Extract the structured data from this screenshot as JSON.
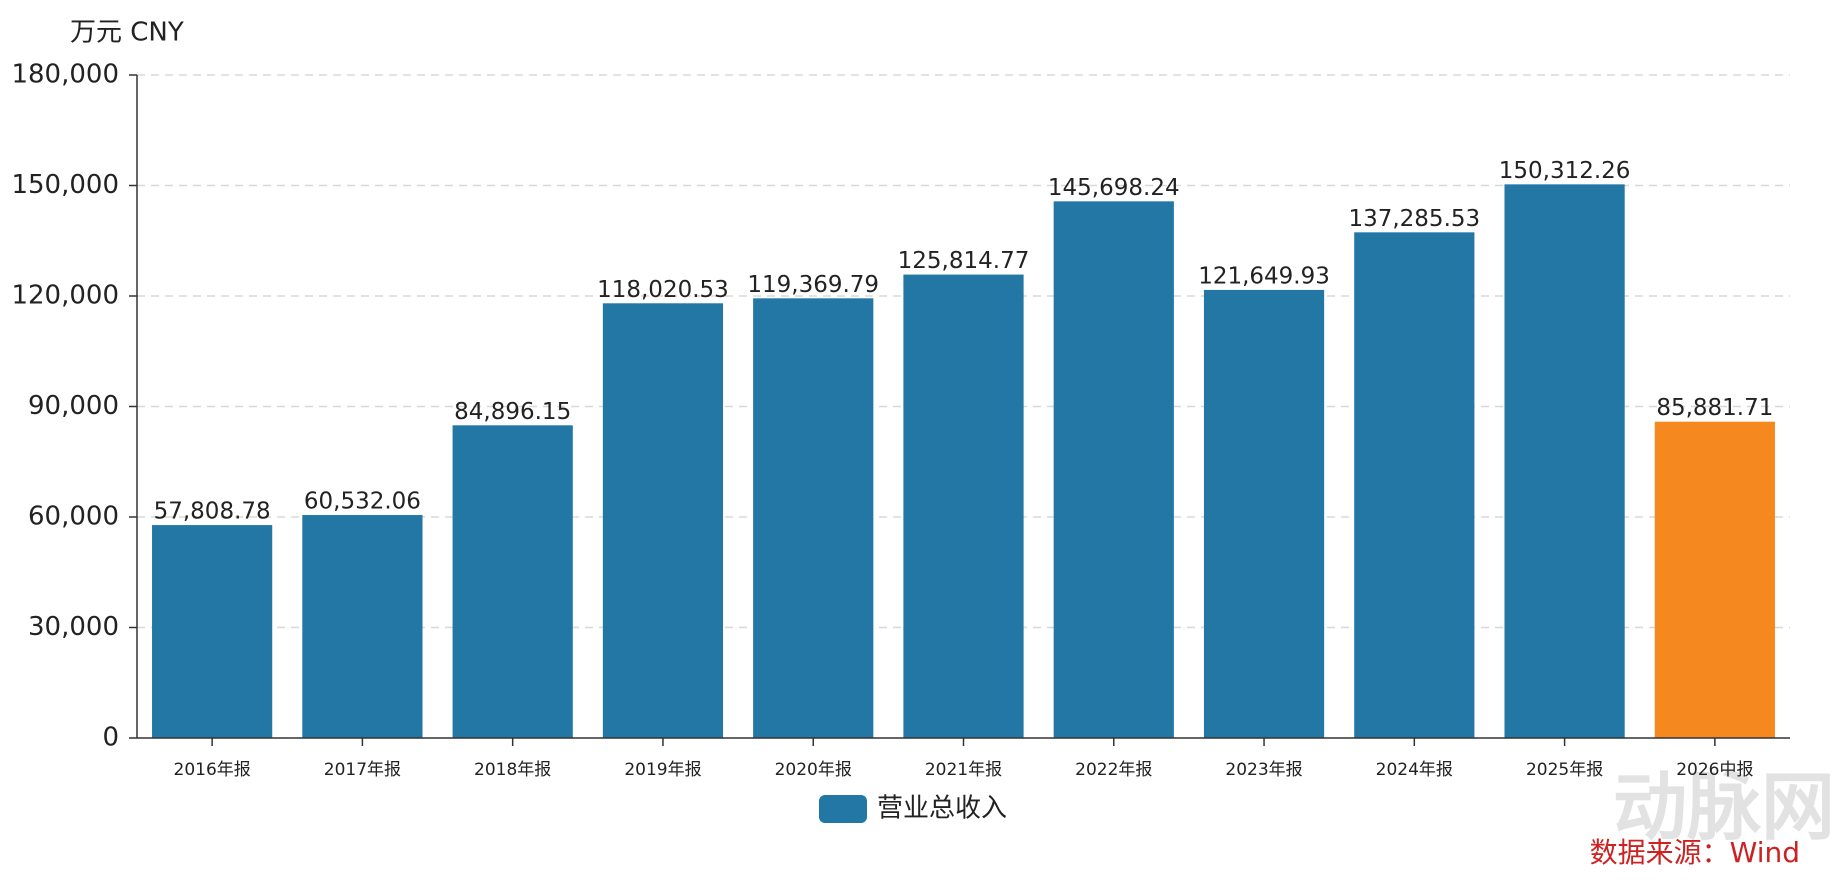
{
  "chart_data": {
    "type": "bar",
    "unit_label": "万元  CNY",
    "categories": [
      "2016年报",
      "2017年报",
      "2018年报",
      "2019年报",
      "2020年报",
      "2021年报",
      "2022年报",
      "2023年报",
      "2024年报",
      "2025年报",
      "2026中报"
    ],
    "series": [
      {
        "name": "营业总收入",
        "color": "#2277a5",
        "colors": [
          "#2277a5",
          "#2277a5",
          "#2277a5",
          "#2277a5",
          "#2277a5",
          "#2277a5",
          "#2277a5",
          "#2277a5",
          "#2277a5",
          "#2277a5",
          "#f5891f"
        ],
        "values": [
          57808.78,
          60532.06,
          84896.15,
          118020.53,
          119369.79,
          125814.77,
          145698.24,
          121649.93,
          137285.53,
          150312.26,
          85881.71
        ],
        "value_labels": [
          "57,808.78",
          "60,532.06",
          "84,896.15",
          "118,020.53",
          "119,369.79",
          "125,814.77",
          "145,698.24",
          "121,649.93",
          "137,285.53",
          "150,312.26",
          "85,881.71"
        ]
      }
    ],
    "ylim": [
      0,
      180000
    ],
    "yticks": [
      0,
      {
        "value": 30000,
        "label": "30,000"
      },
      {
        "value": 60000,
        "label": "60,000"
      },
      {
        "value": 90000,
        "label": "90,000"
      },
      {
        "value": 120000,
        "label": "120,000"
      },
      {
        "value": 150000,
        "label": "150,000"
      },
      {
        "value": 180000,
        "label": "180,000"
      }
    ],
    "grid": true,
    "watermark": "动脉网",
    "source": "数据来源：Wind"
  }
}
